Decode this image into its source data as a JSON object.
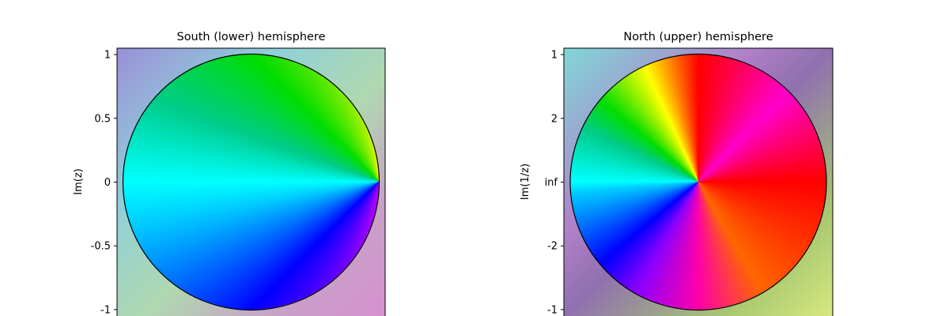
{
  "chart_data": [
    {
      "type": "image",
      "title": "South (lower) hemisphere",
      "ylabel": "Im(z)",
      "ylim": [
        -1.05,
        1.05
      ],
      "yticks": [
        1,
        0.5,
        0,
        -0.5,
        -1
      ]
    },
    {
      "type": "image",
      "title": "North (upper) hemisphere",
      "ylabel": "Im(1/z)",
      "ylim": [
        -1.05,
        1.05
      ],
      "yticks": [
        1,
        {
          "value": 0.5,
          "label": "2"
        },
        {
          "value": 0,
          "label": "inf"
        },
        {
          "value": -0.5,
          "label": "-2"
        },
        -1
      ]
    }
  ]
}
